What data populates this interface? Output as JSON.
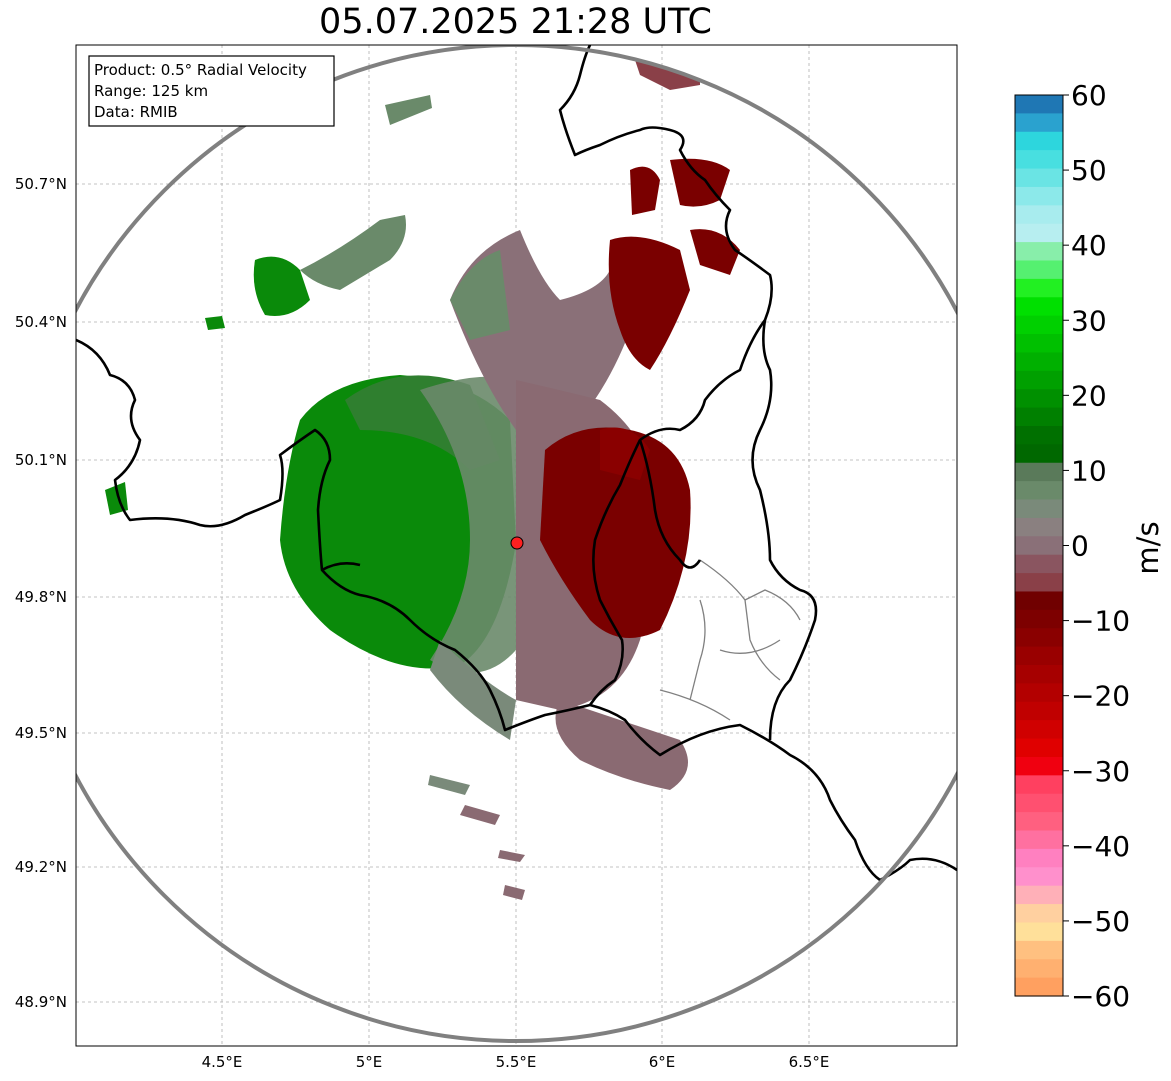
{
  "title": "05.07.2025 21:28 UTC",
  "info_box": {
    "product": "Product: 0.5° Radial Velocity",
    "range": "Range: 125 km",
    "source": "Data: RMIB"
  },
  "lat_ticks": [
    "50.7°N",
    "50.4°N",
    "50.1°N",
    "49.8°N",
    "49.5°N",
    "49.2°N",
    "48.9°N"
  ],
  "lon_ticks": [
    "4.5°E",
    "5°E",
    "5.5°E",
    "6°E",
    "6.5°E"
  ],
  "colorbar": {
    "unit": "m/s",
    "ticks": [
      "60",
      "50",
      "40",
      "30",
      "20",
      "10",
      "0",
      "−10",
      "−20",
      "−30",
      "−40",
      "−50",
      "−60"
    ],
    "vmin": -60,
    "vmax": 60,
    "colors": [
      "#1f77b4",
      "#2aa2cf",
      "#2dd6dd",
      "#48dfe0",
      "#6ae4e4",
      "#8ce9ea",
      "#a8ecee",
      "#b7eef0",
      "#88eeaa",
      "#55f070",
      "#22f022",
      "#00e000",
      "#00d000",
      "#00c000",
      "#00b000",
      "#00a000",
      "#009000",
      "#008000",
      "#007000",
      "#006800",
      "#5a7a5a",
      "#6a8a6a",
      "#7a8a7a",
      "#8a8080",
      "#8a7078",
      "#8a5560",
      "#8a4048",
      "#700000",
      "#7d0000",
      "#8a0000",
      "#990000",
      "#a60000",
      "#b30000",
      "#c00000",
      "#d00000",
      "#e00000",
      "#f00010",
      "#ff4060",
      "#ff5070",
      "#ff6080",
      "#ff70a0",
      "#ff80c0",
      "#ff90cc",
      "#ffb0b8",
      "#ffd0a0",
      "#ffe09a",
      "#ffc080",
      "#ffb070",
      "#ffa060"
    ],
    "colors_top_to_bottom": true
  },
  "map": {
    "radar_site": {
      "lon": 5.505,
      "lat": 49.914
    },
    "range_km": 125,
    "lon_range": [
      4.0,
      7.0
    ],
    "lat_range": [
      48.8,
      51.0
    ],
    "gridlines": true
  },
  "colors": {
    "inbound_green": "#008000",
    "inbound_grey_green": "#6a8a6a",
    "outbound_dark_red": "#7a0000",
    "outbound_grey_red": "#8a6a72",
    "range_ring": "#808080",
    "border_country": "#000000",
    "border_region": "#808080",
    "radar_marker": "#ff0000"
  }
}
